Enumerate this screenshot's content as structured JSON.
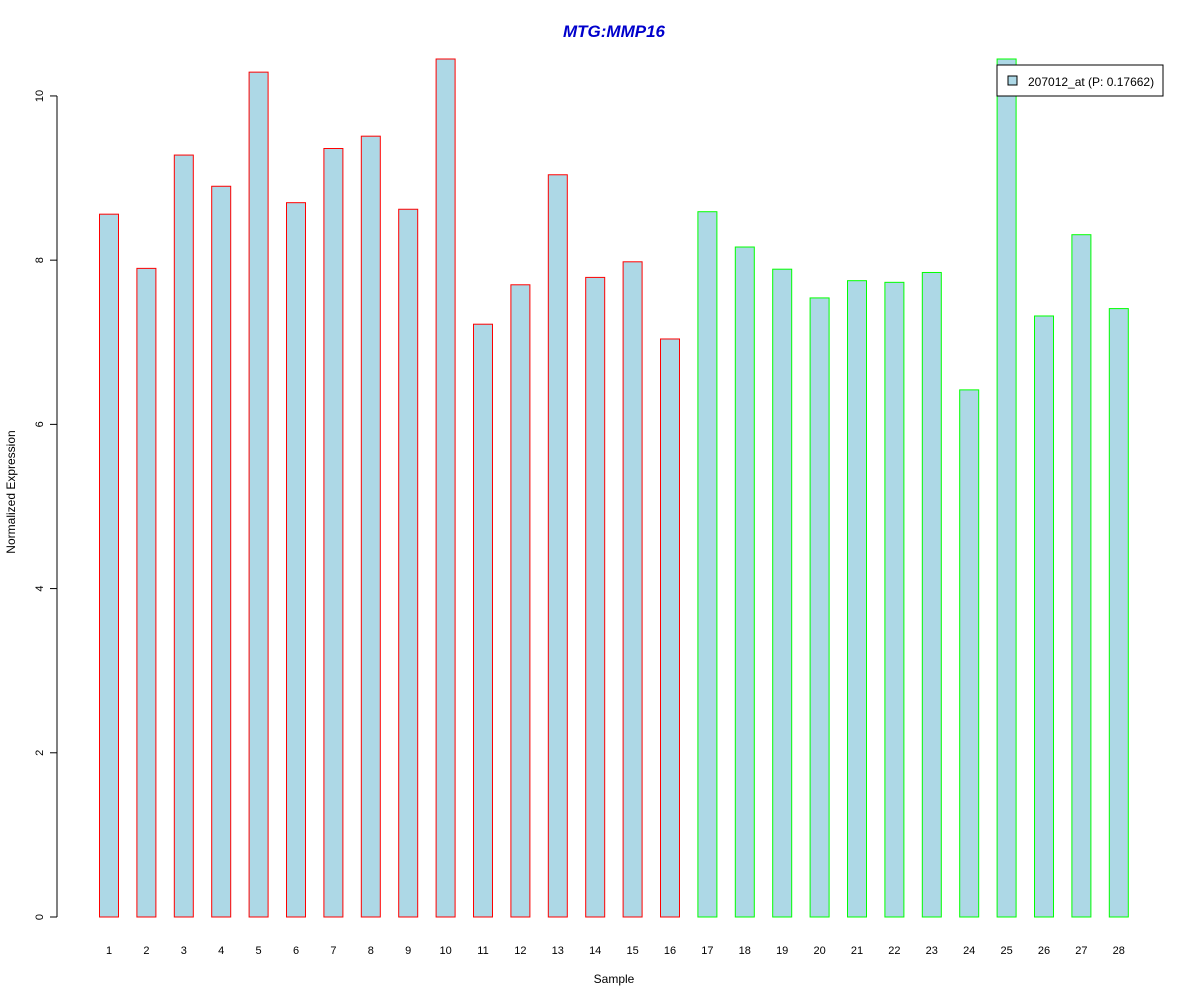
{
  "chart_data": {
    "type": "bar",
    "title": "MTG:MMP16",
    "xlabel": "Sample",
    "ylabel": "Normalized Expression",
    "ylim": [
      0,
      10.45
    ],
    "yticks": [
      "0",
      "2",
      "4",
      "6",
      "8",
      "10"
    ],
    "categories": [
      "1",
      "2",
      "3",
      "4",
      "5",
      "6",
      "7",
      "8",
      "9",
      "10",
      "11",
      "12",
      "13",
      "14",
      "15",
      "16",
      "17",
      "18",
      "19",
      "20",
      "21",
      "22",
      "23",
      "24",
      "25",
      "26",
      "27",
      "28"
    ],
    "series": [
      {
        "name": "207012_at (P: 0.17662)",
        "values": [
          8.56,
          7.9,
          9.28,
          8.9,
          10.29,
          8.7,
          9.36,
          9.51,
          8.62,
          10.45,
          7.22,
          7.7,
          9.04,
          7.79,
          7.98,
          7.04,
          8.59,
          8.16,
          7.89,
          7.54,
          7.75,
          7.73,
          7.85,
          6.42,
          10.45,
          7.32,
          8.31,
          7.41
        ]
      }
    ],
    "group_of_bar": [
      1,
      1,
      1,
      1,
      1,
      1,
      1,
      1,
      1,
      1,
      1,
      1,
      1,
      1,
      1,
      1,
      2,
      2,
      2,
      2,
      2,
      2,
      2,
      2,
      2,
      2,
      2,
      2
    ],
    "colors": {
      "bar_fill": "#add8e6",
      "group1_border": "#ff0000",
      "group2_border": "#00ff00",
      "title": "#0000cc"
    },
    "grid": false,
    "legend_position": "top-right"
  }
}
